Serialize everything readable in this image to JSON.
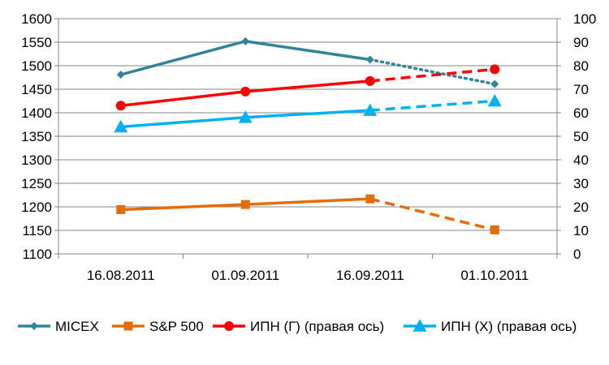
{
  "chart_data": {
    "type": "line",
    "categories": [
      "16.08.2011",
      "01.09.2011",
      "16.09.2011",
      "01.10.2011"
    ],
    "y_left": {
      "min": 1100,
      "max": 1600,
      "step": 50,
      "ticks": [
        "1100",
        "1150",
        "1200",
        "1250",
        "1300",
        "1350",
        "1400",
        "1450",
        "1500",
        "1550",
        "1600"
      ]
    },
    "y_right": {
      "min": 0,
      "max": 100,
      "step": 10,
      "ticks": [
        "0",
        "10",
        "20",
        "30",
        "40",
        "50",
        "60",
        "70",
        "80",
        "90",
        "100"
      ]
    },
    "grid": "horizontal",
    "legend_position": "bottom",
    "series": [
      {
        "name": "MICEX",
        "axis": "left",
        "color": "#31849B",
        "marker": "diamond",
        "values": [
          1481,
          1552,
          1513,
          1461
        ],
        "last_segment_style": "dotted"
      },
      {
        "name": "S&P 500",
        "axis": "left",
        "color": "#E46C0A",
        "marker": "square",
        "values": [
          1194,
          1205,
          1217,
          1151
        ],
        "last_segment_style": "dashed"
      },
      {
        "name": "ИПН (Г) (правая ось)",
        "axis": "right",
        "color": "#FF0000",
        "marker": "circle",
        "values": [
          63,
          69,
          73.5,
          78.5
        ],
        "last_segment_style": "dashed"
      },
      {
        "name": "ИПН (Х) (правая ось)",
        "axis": "right",
        "color": "#00B0F0",
        "marker": "triangle",
        "values": [
          54,
          58,
          61,
          65
        ],
        "last_segment_style": "dashed"
      }
    ]
  }
}
